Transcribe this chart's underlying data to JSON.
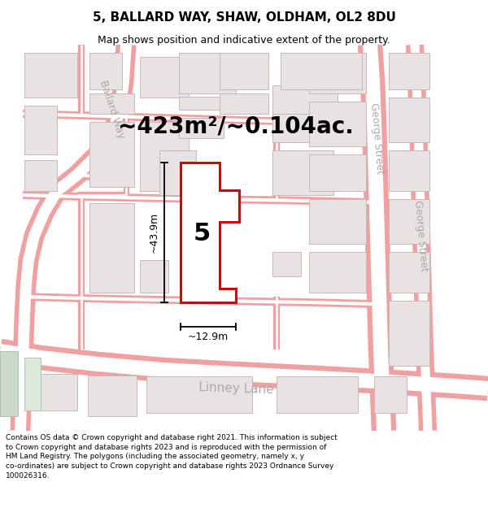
{
  "title": "5, BALLARD WAY, SHAW, OLDHAM, OL2 8DU",
  "subtitle": "Map shows position and indicative extent of the property.",
  "footer": "Contains OS data © Crown copyright and database right 2021. This information is subject to Crown copyright and database rights 2023 and is reproduced with the permission of HM Land Registry. The polygons (including the associated geometry, namely x, y co-ordinates) are subject to Crown copyright and database rights 2023 Ordnance Survey 100026316.",
  "area_label": "~423m²/~0.104ac.",
  "width_label": "~12.9m",
  "height_label": "~43.9m",
  "plot_number": "5",
  "bg_color": "#ffffff",
  "map_bg": "#f9f6f6",
  "road_line_color": "#f0a0a0",
  "road_fill_color": "#ffffff",
  "building_edge_color": "#c8b8b8",
  "building_fill_color": "#e8e2e2",
  "highlight_color": "#dd0000",
  "highlight_fill": "#ffffff",
  "street_label_color": "#b0a8a8",
  "dim_color": "#111111",
  "title_fontsize": 11,
  "subtitle_fontsize": 9,
  "footer_fontsize": 6.5,
  "area_fontsize": 20,
  "plot_num_fontsize": 22,
  "dim_fontsize": 9,
  "street_label_fontsize": 9
}
